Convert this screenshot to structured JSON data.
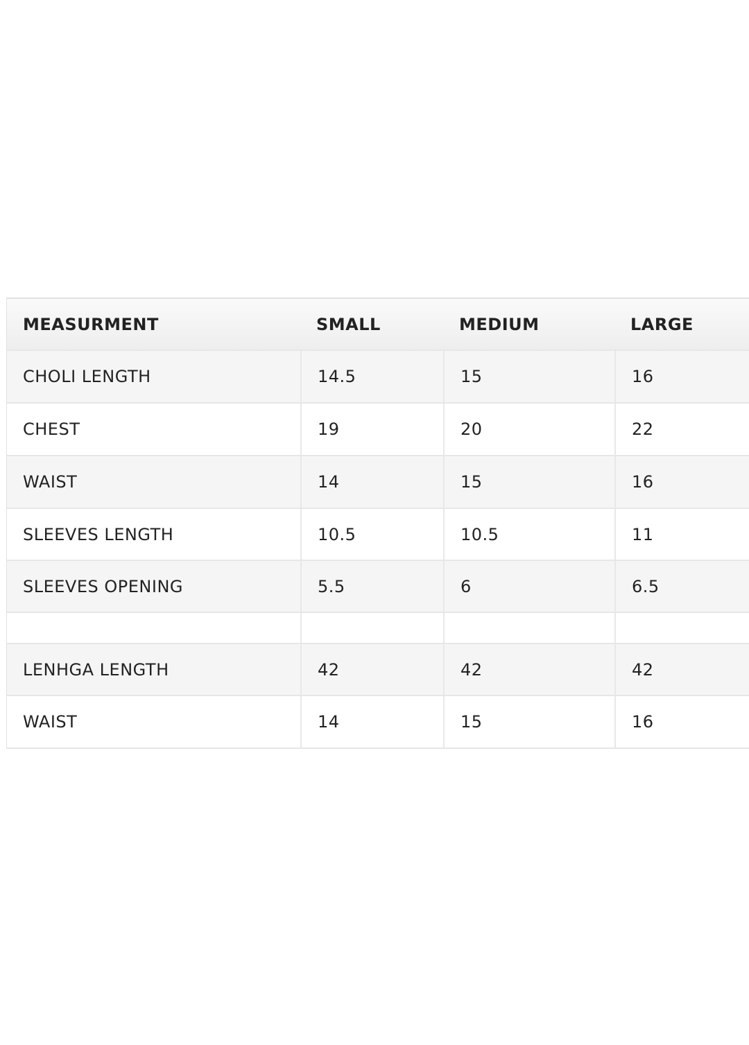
{
  "table": {
    "header": [
      "MEASURMENT",
      "SMALL",
      "MEDIUM",
      "LARGE"
    ],
    "rows": [
      [
        "CHOLI LENGTH",
        "14.5",
        "15",
        "16"
      ],
      [
        "CHEST",
        "19",
        "20",
        "22"
      ],
      [
        "WAIST",
        "14",
        "15",
        "16"
      ],
      [
        "SLEEVES LENGTH",
        "10.5",
        "10.5",
        "11"
      ],
      [
        "SLEEVES OPENING",
        "5.5",
        "6",
        "6.5"
      ],
      [
        null,
        null,
        null,
        null
      ],
      [
        "LENHGA LENGTH",
        "42",
        "42",
        "42"
      ],
      [
        "WAIST",
        "14",
        "15",
        "16"
      ]
    ]
  }
}
